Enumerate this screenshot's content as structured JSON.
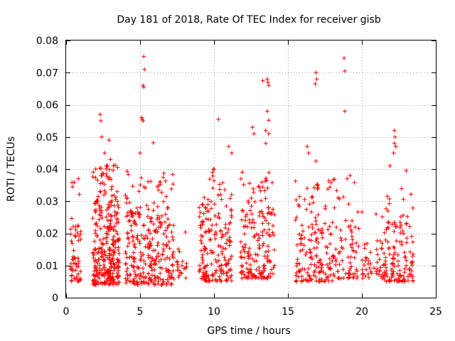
{
  "chart_data": {
    "type": "scatter",
    "title": "Day 181 of 2018, Rate Of TEC Index for receiver gisb",
    "xlabel": "GPS time / hours",
    "ylabel": "ROTI / TECUs",
    "xlim": [
      0,
      25
    ],
    "ylim": [
      0,
      0.08
    ],
    "xticks": [
      0,
      5,
      10,
      15,
      20,
      25
    ],
    "xtick_labels": [
      "0",
      "5",
      "10",
      "15",
      "20",
      "25"
    ],
    "yticks": [
      0,
      0.01,
      0.02,
      0.03,
      0.04,
      0.05,
      0.06,
      0.07,
      0.08
    ],
    "ytick_labels": [
      "0",
      "0.01",
      "0.02",
      "0.03",
      "0.04",
      "0.05",
      "0.06",
      "0.07",
      "0.08"
    ],
    "grid": true,
    "marker": "+",
    "color": "#ff0000",
    "series": [
      {
        "name": "ROTI",
        "clusters": [
          {
            "x": [
              0.3,
              1.0
            ],
            "y_bulk": [
              0.005,
              0.025
            ],
            "n": 60
          },
          {
            "x": [
              1.8,
              3.6
            ],
            "y_bulk": [
              0.004,
              0.03
            ],
            "n": 320
          },
          {
            "x": [
              4.0,
              7.3
            ],
            "y_bulk": [
              0.004,
              0.028
            ],
            "n": 300
          },
          {
            "x": [
              7.5,
              8.2
            ],
            "y_bulk": [
              0.006,
              0.016
            ],
            "n": 20
          },
          {
            "x": [
              9.0,
              11.2
            ],
            "y_bulk": [
              0.005,
              0.03
            ],
            "n": 190
          },
          {
            "x": [
              11.8,
              14.1
            ],
            "y_bulk": [
              0.006,
              0.028
            ],
            "n": 180
          },
          {
            "x": [
              15.5,
              18.0
            ],
            "y_bulk": [
              0.005,
              0.025
            ],
            "n": 160
          },
          {
            "x": [
              18.0,
              19.8
            ],
            "y_bulk": [
              0.006,
              0.025
            ],
            "n": 80
          },
          {
            "x": [
              20.0,
              21.5
            ],
            "y_bulk": [
              0.006,
              0.018
            ],
            "n": 50
          },
          {
            "x": [
              21.5,
              23.5
            ],
            "y_bulk": [
              0.005,
              0.024
            ],
            "n": 130
          }
        ],
        "outliers": [
          {
            "x": 2.3,
            "y": 0.057
          },
          {
            "x": 2.35,
            "y": 0.055
          },
          {
            "x": 2.4,
            "y": 0.05
          },
          {
            "x": 2.9,
            "y": 0.049
          },
          {
            "x": 2.6,
            "y": 0.045
          },
          {
            "x": 3.0,
            "y": 0.043
          },
          {
            "x": 5.25,
            "y": 0.075
          },
          {
            "x": 5.3,
            "y": 0.071
          },
          {
            "x": 5.2,
            "y": 0.066
          },
          {
            "x": 5.25,
            "y": 0.0655
          },
          {
            "x": 5.1,
            "y": 0.056
          },
          {
            "x": 5.15,
            "y": 0.0555
          },
          {
            "x": 5.2,
            "y": 0.055
          },
          {
            "x": 5.9,
            "y": 0.0482
          },
          {
            "x": 5.0,
            "y": 0.045
          },
          {
            "x": 10.3,
            "y": 0.0555
          },
          {
            "x": 10.0,
            "y": 0.04
          },
          {
            "x": 9.9,
            "y": 0.039
          },
          {
            "x": 11.0,
            "y": 0.047
          },
          {
            "x": 11.2,
            "y": 0.045
          },
          {
            "x": 12.6,
            "y": 0.053
          },
          {
            "x": 12.7,
            "y": 0.051
          },
          {
            "x": 13.3,
            "y": 0.0675
          },
          {
            "x": 13.6,
            "y": 0.068
          },
          {
            "x": 13.65,
            "y": 0.067
          },
          {
            "x": 13.7,
            "y": 0.066
          },
          {
            "x": 13.6,
            "y": 0.058
          },
          {
            "x": 13.7,
            "y": 0.0552
          },
          {
            "x": 13.5,
            "y": 0.052
          },
          {
            "x": 13.7,
            "y": 0.051
          },
          {
            "x": 13.5,
            "y": 0.048
          },
          {
            "x": 16.3,
            "y": 0.047
          },
          {
            "x": 16.4,
            "y": 0.045
          },
          {
            "x": 16.9,
            "y": 0.07
          },
          {
            "x": 16.95,
            "y": 0.068
          },
          {
            "x": 16.85,
            "y": 0.0665
          },
          {
            "x": 16.9,
            "y": 0.0425
          },
          {
            "x": 18.8,
            "y": 0.0745
          },
          {
            "x": 18.85,
            "y": 0.0705
          },
          {
            "x": 18.85,
            "y": 0.058
          },
          {
            "x": 19.2,
            "y": 0.038
          },
          {
            "x": 19.0,
            "y": 0.037
          },
          {
            "x": 22.2,
            "y": 0.052
          },
          {
            "x": 22.25,
            "y": 0.05
          },
          {
            "x": 22.2,
            "y": 0.048
          },
          {
            "x": 22.3,
            "y": 0.047
          },
          {
            "x": 22.15,
            "y": 0.045
          },
          {
            "x": 21.9,
            "y": 0.041
          },
          {
            "x": 23.0,
            "y": 0.0395
          }
        ]
      }
    ]
  }
}
